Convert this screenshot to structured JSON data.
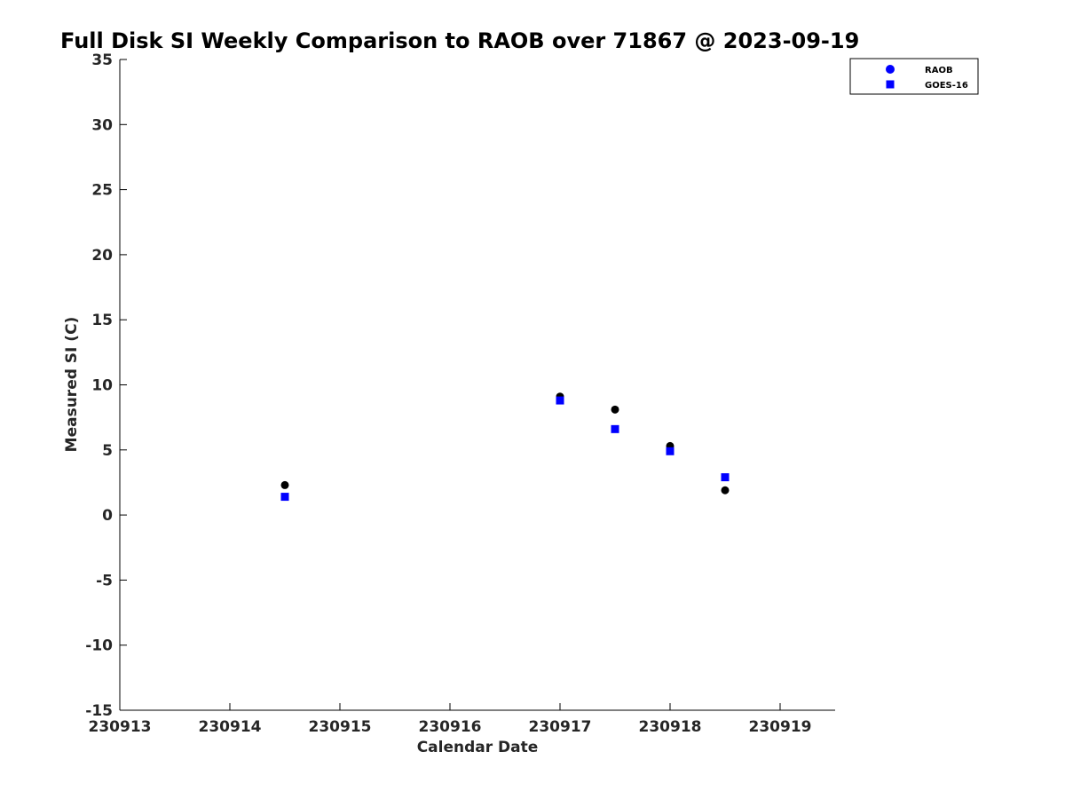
{
  "chart_data": {
    "type": "scatter",
    "title": "Full Disk SI Weekly Comparison to RAOB over 71867 @ 2023-09-19",
    "xlabel": "Calendar Date",
    "ylabel": "Measured SI (C)",
    "xlim": [
      230913,
      230919.5
    ],
    "ylim": [
      -15,
      35
    ],
    "x_ticks": [
      230913,
      230914,
      230915,
      230916,
      230917,
      230918,
      230919
    ],
    "x_tick_labels": [
      "230913",
      "230914",
      "230915",
      "230916",
      "230917",
      "230918",
      "230919"
    ],
    "y_ticks": [
      35,
      30,
      25,
      20,
      15,
      10,
      5,
      0,
      -5,
      -10,
      -15
    ],
    "y_tick_labels": [
      "35",
      "30",
      "25",
      "20",
      "15",
      "10",
      "5",
      "0",
      "-5",
      "-10",
      "-15"
    ],
    "grid": false,
    "legend_position": "top-right",
    "series": [
      {
        "name": "RAOB",
        "marker": "circle",
        "color": "#000000",
        "legend_color": "#0000ff",
        "x": [
          230914.5,
          230917.0,
          230917.5,
          230918.0,
          230918.5
        ],
        "y": [
          2.3,
          9.1,
          8.1,
          5.3,
          1.9
        ]
      },
      {
        "name": "GOES-16",
        "marker": "square",
        "color": "#0000ff",
        "legend_color": "#0000ff",
        "x": [
          230914.5,
          230917.0,
          230917.5,
          230918.0,
          230918.5
        ],
        "y": [
          1.4,
          8.8,
          6.6,
          4.9,
          2.9
        ]
      }
    ]
  }
}
